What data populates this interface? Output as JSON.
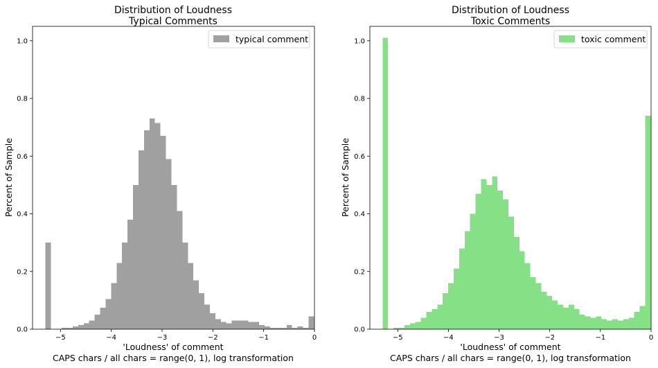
{
  "chart_data": [
    {
      "type": "histogram",
      "title": "Distribution of Loudness",
      "subtitle": "Typical Comments",
      "xlabel": "'Loudness' of comment",
      "xlabel2": "CAPS chars / all chars = range(0, 1), log transformation",
      "ylabel": "Percent of Sample",
      "xlim": [
        -5.55,
        0
      ],
      "ylim": [
        0,
        1.05
      ],
      "xticks": [
        -5,
        -4,
        -3,
        -2,
        -1,
        0
      ],
      "yticks": [
        0.0,
        0.2,
        0.4,
        0.6,
        0.8,
        1.0
      ],
      "xtick_labels": [
        "−5",
        "−4",
        "−3",
        "−2",
        "−1",
        "0"
      ],
      "ytick_labels": [
        "0.0",
        "0.2",
        "0.4",
        "0.6",
        "0.8",
        "1.0"
      ],
      "legend": {
        "label": "typical comment",
        "position": "top-right"
      },
      "color": "#a0a0a0",
      "bin_width": 0.108,
      "bins_start": [
        -5.3,
        -5.192,
        -5.084,
        -4.976,
        -4.868,
        -4.76,
        -4.652,
        -4.544,
        -4.436,
        -4.328,
        -4.22,
        -4.112,
        -4.004,
        -3.896,
        -3.788,
        -3.68,
        -3.572,
        -3.464,
        -3.356,
        -3.248,
        -3.14,
        -3.032,
        -2.924,
        -2.816,
        -2.708,
        -2.6,
        -2.492,
        -2.384,
        -2.276,
        -2.168,
        -2.06,
        -1.952,
        -1.844,
        -1.736,
        -1.628,
        -1.52,
        -1.412,
        -1.304,
        -1.196,
        -1.088,
        -0.98,
        -0.872,
        -0.764,
        -0.656,
        -0.548,
        -0.44,
        -0.332,
        -0.224,
        -0.116
      ],
      "values": [
        0.3,
        0.0,
        0.0,
        0.005,
        0.005,
        0.01,
        0.015,
        0.02,
        0.03,
        0.05,
        0.075,
        0.105,
        0.16,
        0.23,
        0.3,
        0.38,
        0.5,
        0.62,
        0.69,
        0.73,
        0.715,
        0.67,
        0.59,
        0.5,
        0.41,
        0.3,
        0.23,
        0.17,
        0.125,
        0.085,
        0.055,
        0.035,
        0.025,
        0.02,
        0.03,
        0.03,
        0.03,
        0.025,
        0.025,
        0.015,
        0.01,
        0.005,
        0.005,
        0.005,
        0.015,
        0.005,
        0.01,
        0.005,
        0.045
      ]
    },
    {
      "type": "histogram",
      "title": "Distribution of Loudness",
      "subtitle": "Toxic Comments",
      "xlabel": "'Loudness' of comment",
      "xlabel2": "CAPS chars / all chars = range(0, 1), log transformation",
      "ylabel": "Percent of Sample",
      "xlim": [
        -5.55,
        0
      ],
      "ylim": [
        0,
        1.05
      ],
      "xticks": [
        -5,
        -4,
        -3,
        -2,
        -1,
        0
      ],
      "yticks": [
        0.0,
        0.2,
        0.4,
        0.6,
        0.8,
        1.0
      ],
      "xtick_labels": [
        "−5",
        "−4",
        "−3",
        "−2",
        "−1",
        "0"
      ],
      "ytick_labels": [
        "0.0",
        "0.2",
        "0.4",
        "0.6",
        "0.8",
        "1.0"
      ],
      "legend": {
        "label": "toxic comment",
        "position": "top-right"
      },
      "color": "#86e086",
      "bin_width": 0.108,
      "bins_start": [
        -5.3,
        -5.192,
        -5.084,
        -4.976,
        -4.868,
        -4.76,
        -4.652,
        -4.544,
        -4.436,
        -4.328,
        -4.22,
        -4.112,
        -4.004,
        -3.896,
        -3.788,
        -3.68,
        -3.572,
        -3.464,
        -3.356,
        -3.248,
        -3.14,
        -3.032,
        -2.924,
        -2.816,
        -2.708,
        -2.6,
        -2.492,
        -2.384,
        -2.276,
        -2.168,
        -2.06,
        -1.952,
        -1.844,
        -1.736,
        -1.628,
        -1.52,
        -1.412,
        -1.304,
        -1.196,
        -1.088,
        -0.98,
        -0.872,
        -0.764,
        -0.656,
        -0.548,
        -0.44,
        -0.332,
        -0.224,
        -0.116
      ],
      "values": [
        1.01,
        0.0,
        0.005,
        0.005,
        0.015,
        0.02,
        0.025,
        0.04,
        0.06,
        0.07,
        0.085,
        0.125,
        0.16,
        0.21,
        0.28,
        0.34,
        0.4,
        0.47,
        0.52,
        0.5,
        0.53,
        0.48,
        0.45,
        0.39,
        0.32,
        0.27,
        0.23,
        0.18,
        0.16,
        0.13,
        0.115,
        0.1,
        0.085,
        0.075,
        0.085,
        0.07,
        0.05,
        0.045,
        0.04,
        0.045,
        0.035,
        0.03,
        0.035,
        0.03,
        0.035,
        0.04,
        0.06,
        0.08,
        0.74
      ]
    }
  ]
}
